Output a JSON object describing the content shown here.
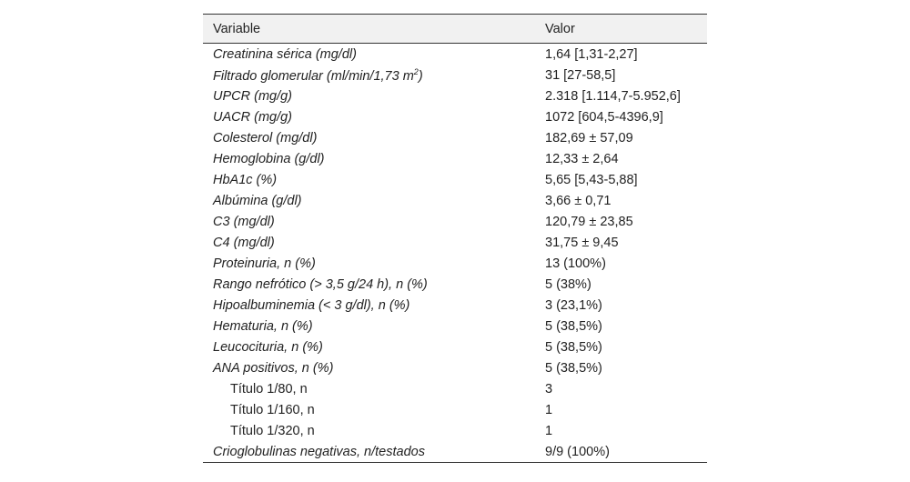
{
  "table": {
    "header": [
      "Variable",
      "Valor"
    ],
    "rows": [
      [
        "Creatinina sérica (mg/dl)",
        "1,64 [1,31-2,27]"
      ],
      [
        [
          "Filtrado glomerular (ml/min/1,73 m",
          "2",
          ")"
        ],
        "31 [27-58,5]"
      ],
      [
        "UPCR (mg/g)",
        "2.318 [1.114,7-5.952,6]"
      ],
      [
        "UACR (mg/g)",
        "1072 [604,5-4396,9]"
      ],
      [
        "Colesterol (mg/dl)",
        "182,69 ± 57,09"
      ],
      [
        "Hemoglobina (g/dl)",
        "12,33 ± 2,64"
      ],
      [
        "HbA1c (%)",
        "5,65 [5,43-5,88]"
      ],
      [
        "Albúmina (g/dl)",
        "3,66 ± 0,71"
      ],
      [
        "C3 (mg/dl)",
        "120,79 ± 23,85"
      ],
      [
        "C4 (mg/dl)",
        "31,75 ± 9,45"
      ],
      [
        "Proteinuria, n (%)",
        "13 (100%)"
      ],
      [
        "Rango nefrótico (> 3,5 g/24 h), n (%)",
        "5 (38%)"
      ],
      [
        "Hipoalbuminemia (< 3 g/dl), n (%)",
        "3 (23,1%)"
      ],
      [
        "Hematuria, n (%)",
        "5 (38,5%)"
      ],
      [
        "Leucocituria, n (%)",
        "5 (38,5%)"
      ],
      [
        "ANA positivos, n (%)",
        "5 (38,5%)"
      ],
      [
        "Título 1/80, n",
        "3"
      ],
      [
        "Título 1/160, n",
        "1"
      ],
      [
        "Título 1/320, n",
        "1"
      ],
      [
        "Crioglobulinas negativas, n/testados",
        "9/9 (100%)"
      ]
    ]
  }
}
